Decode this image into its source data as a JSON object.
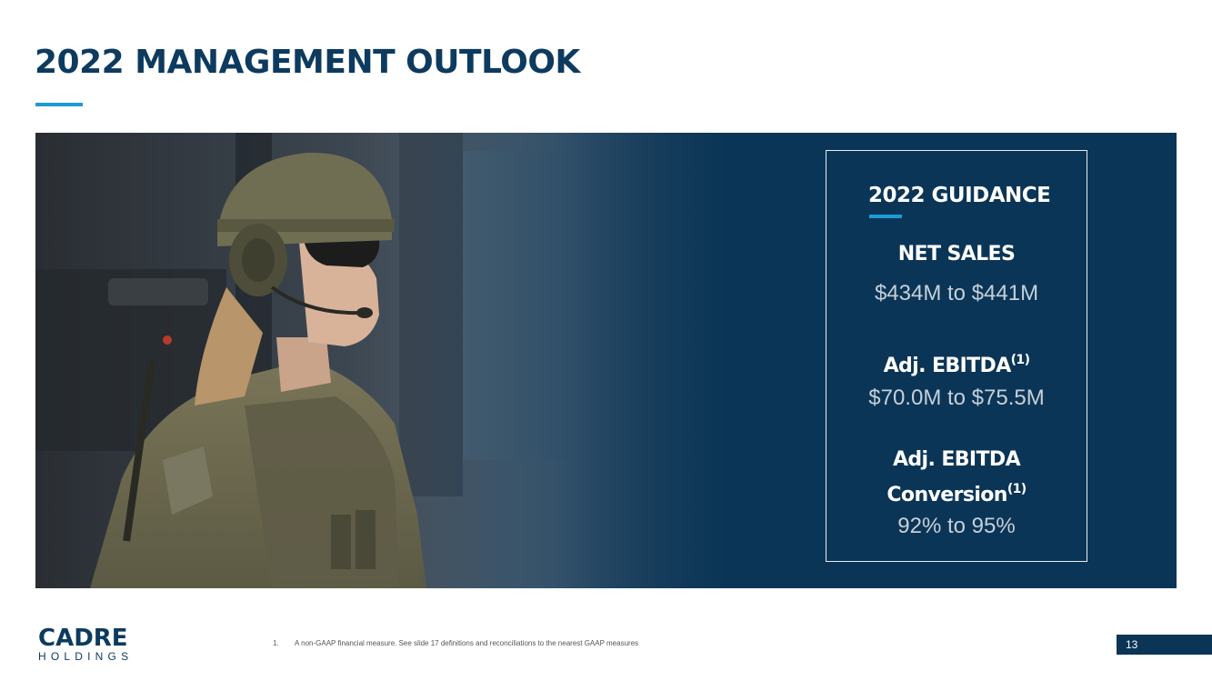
{
  "title": "2022 MANAGEMENT OUTLOOK",
  "colors": {
    "navy": "#0d3a5f",
    "hero_bg": "#0b3556",
    "accent": "#1e9ad6",
    "value_text": "#c5d0da"
  },
  "guidance": {
    "heading": "2022 GUIDANCE",
    "net_sales": {
      "label": "NET SALES",
      "value": "$434M to $441M"
    },
    "adj_ebitda": {
      "label": "Adj. EBITDA",
      "footnote_mark": "(1)",
      "value": "$70.0M to $75.5M"
    },
    "adj_ebitda_conversion": {
      "label_line1": "Adj. EBITDA",
      "label_line2": "Conversion",
      "footnote_mark": "(1)",
      "value": "92% to 95%"
    }
  },
  "footer": {
    "logo_word": "CADRE",
    "logo_sub": "HOLDINGS",
    "footnote_number": "1.",
    "footnote_text": "A non-GAAP financial measure. See slide 17 definitions and reconciliations to the nearest GAAP measures",
    "page_number": "13"
  }
}
